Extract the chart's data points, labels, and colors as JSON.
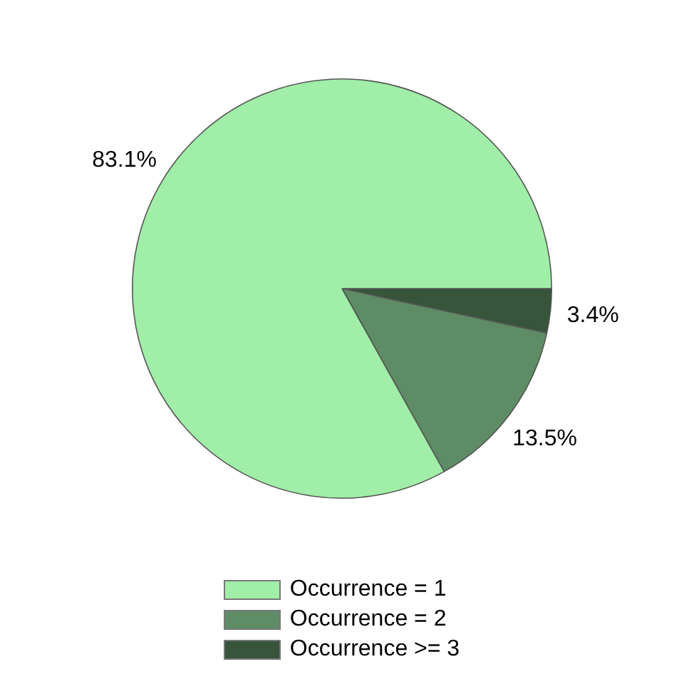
{
  "chart_data": {
    "type": "pie",
    "categories": [
      "Occurrence = 1",
      "Occurrence = 2",
      "Occurrence >= 3"
    ],
    "values": [
      83.1,
      13.5,
      3.4
    ],
    "colors": [
      "#a0eea8",
      "#5e8c65",
      "#36553b"
    ],
    "value_labels": [
      "83.1%",
      "13.5%",
      "3.4%"
    ],
    "legend": "bottom"
  }
}
